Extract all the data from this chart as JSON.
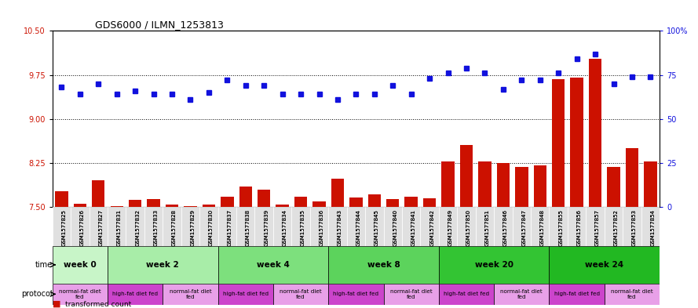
{
  "title": "GDS6000 / ILMN_1253813",
  "samples": [
    "GSM1577825",
    "GSM1577826",
    "GSM1577827",
    "GSM1577831",
    "GSM1577832",
    "GSM1577833",
    "GSM1577828",
    "GSM1577829",
    "GSM1577830",
    "GSM1577837",
    "GSM1577838",
    "GSM1577839",
    "GSM1577834",
    "GSM1577835",
    "GSM1577836",
    "GSM1577843",
    "GSM1577844",
    "GSM1577845",
    "GSM1577840",
    "GSM1577841",
    "GSM1577842",
    "GSM1577849",
    "GSM1577850",
    "GSM1577851",
    "GSM1577846",
    "GSM1577847",
    "GSM1577848",
    "GSM1577855",
    "GSM1577856",
    "GSM1577857",
    "GSM1577852",
    "GSM1577853",
    "GSM1577854"
  ],
  "red_values": [
    7.77,
    7.56,
    7.95,
    7.52,
    7.62,
    7.63,
    7.54,
    7.51,
    7.54,
    7.67,
    7.85,
    7.8,
    7.54,
    7.68,
    7.6,
    7.98,
    7.66,
    7.72,
    7.64,
    7.67,
    7.65,
    8.28,
    8.55,
    8.28,
    8.25,
    8.18,
    8.21,
    9.68,
    9.7,
    10.02,
    8.18,
    8.5,
    8.28
  ],
  "blue_percentiles": [
    68,
    64,
    70,
    64,
    66,
    64,
    64,
    61,
    65,
    72,
    69,
    69,
    64,
    64,
    64,
    61,
    64,
    64,
    69,
    64,
    73,
    76,
    79,
    76,
    67,
    72,
    72,
    76,
    84,
    87,
    70,
    74,
    74
  ],
  "ylim_left": [
    7.5,
    10.5
  ],
  "ylim_right": [
    0,
    100
  ],
  "yticks_left": [
    7.5,
    8.25,
    9.0,
    9.75,
    10.5
  ],
  "yticks_right": [
    0,
    25,
    50,
    75,
    100
  ],
  "time_groups": [
    {
      "label": "week 0",
      "start": 0,
      "end": 3
    },
    {
      "label": "week 2",
      "start": 3,
      "end": 9
    },
    {
      "label": "week 4",
      "start": 9,
      "end": 15
    },
    {
      "label": "week 8",
      "start": 15,
      "end": 21
    },
    {
      "label": "week 20",
      "start": 21,
      "end": 27
    },
    {
      "label": "week 24",
      "start": 27,
      "end": 33
    }
  ],
  "time_colors": [
    "#c8f5c8",
    "#a8eda8",
    "#7de07d",
    "#5cd35c",
    "#33c433",
    "#22b822"
  ],
  "protocol_groups": [
    {
      "label": "normal-fat diet\nfed",
      "start": 0,
      "end": 3,
      "color": "#e8a0e8"
    },
    {
      "label": "high-fat diet fed",
      "start": 3,
      "end": 6,
      "color": "#cc44cc"
    },
    {
      "label": "normal-fat diet\nfed",
      "start": 6,
      "end": 9,
      "color": "#e8a0e8"
    },
    {
      "label": "high-fat diet fed",
      "start": 9,
      "end": 12,
      "color": "#cc44cc"
    },
    {
      "label": "normal-fat diet\nfed",
      "start": 12,
      "end": 15,
      "color": "#e8a0e8"
    },
    {
      "label": "high-fat diet fed",
      "start": 15,
      "end": 18,
      "color": "#cc44cc"
    },
    {
      "label": "normal-fat diet\nfed",
      "start": 18,
      "end": 21,
      "color": "#e8a0e8"
    },
    {
      "label": "high-fat diet fed",
      "start": 21,
      "end": 24,
      "color": "#cc44cc"
    },
    {
      "label": "normal-fat diet\nfed",
      "start": 24,
      "end": 27,
      "color": "#e8a0e8"
    },
    {
      "label": "high-fat diet fed",
      "start": 27,
      "end": 30,
      "color": "#cc44cc"
    },
    {
      "label": "normal-fat diet\nfed",
      "start": 30,
      "end": 33,
      "color": "#e8a0e8"
    }
  ],
  "bar_color": "#cc1100",
  "dot_color": "#1111dd",
  "bg_color": "#ffffff",
  "grid_color": "#000000",
  "sample_bg_color": "#e0e0e0"
}
